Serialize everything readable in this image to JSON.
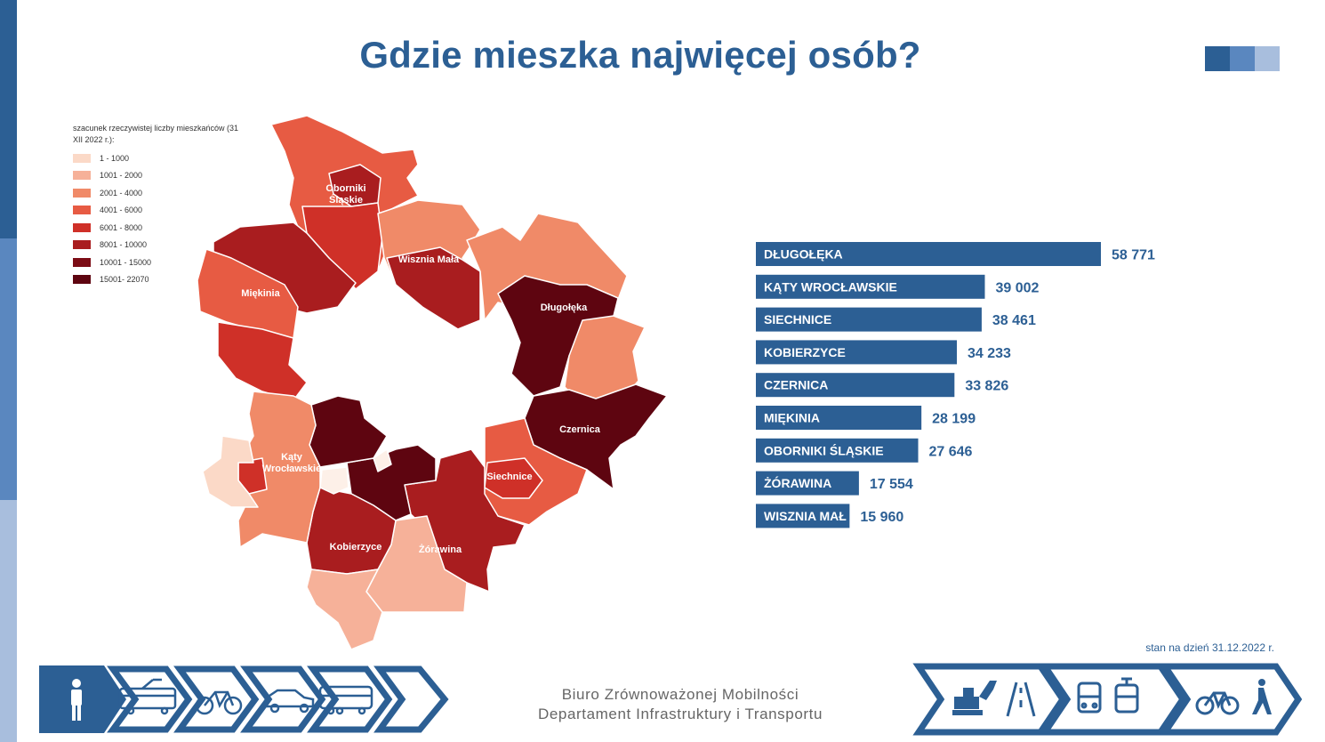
{
  "title": "Gdzie mieszka najwięcej osób?",
  "legend": {
    "title": "szacunek rzeczywistej liczby mieszkańców (31 XII 2022 r.):",
    "items": [
      {
        "label": "1 - 1000",
        "color": "#fbd9c7"
      },
      {
        "label": "1001 - 2000",
        "color": "#f6b199"
      },
      {
        "label": "2001 - 4000",
        "color": "#f08a68"
      },
      {
        "label": "4001 - 6000",
        "color": "#e75b43"
      },
      {
        "label": "6001 - 8000",
        "color": "#cf3028"
      },
      {
        "label": "8001 - 10000",
        "color": "#a91d1f"
      },
      {
        "label": "10001 - 15000",
        "color": "#7c0c15"
      },
      {
        "label": "15001- 22070",
        "color": "#5e0510"
      }
    ]
  },
  "map_labels": {
    "oborniki": "Oborniki Śląskie",
    "wisznia": "Wisznia Mała",
    "miekinia": "Miękinia",
    "dlugoleka": "Długołęka",
    "czernica": "Czernica",
    "katy": "Kąty Wrocławskie",
    "siechnice": "Siechnice",
    "kobierzyce": "Kobierzyce",
    "zorawina": "Żórawina"
  },
  "chart_data": {
    "type": "bar",
    "orientation": "horizontal",
    "categories": [
      "DŁUGOŁĘKA",
      "KĄTY WROCŁAWSKIE",
      "SIECHNICE",
      "KOBIERZYCE",
      "CZERNICA",
      "MIĘKINIA",
      "OBORNIKI ŚLĄSKIE",
      "ŻÓRAWINA",
      "WISZNIA MAŁ"
    ],
    "values": [
      58771,
      39002,
      38461,
      34233,
      33826,
      28199,
      27646,
      17554,
      15960
    ],
    "value_labels": [
      "58 771",
      "39 002",
      "38 461",
      "34 233",
      "33 826",
      "28 199",
      "27 646",
      "17 554",
      "15 960"
    ],
    "bar_color": "#2c5f94"
  },
  "date_note": "stan na dzień 31.12.2022 r.",
  "footer": {
    "line1": "Biuro Zrównoważonej Mobilności",
    "line2": "Departament Infrastruktury i Transportu"
  },
  "colors": {
    "brand": "#2c5f94",
    "strip_top": "#2c5f94",
    "strip_mid": "#5a87bf",
    "strip_bottom": "#a8bedd"
  }
}
